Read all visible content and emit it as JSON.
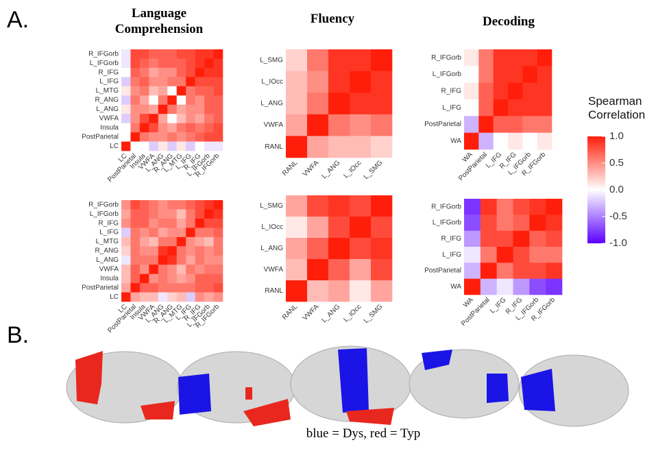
{
  "panel_labels": [
    "A.",
    "B."
  ],
  "chart_data": [
    {
      "type": "heatmap",
      "title": "Language Comprehension",
      "x": [
        "LC",
        "PostParietal",
        "Insula",
        "VWFA",
        "L_ANG",
        "R_ANG",
        "L_MTG",
        "L_IFG",
        "R_IFG",
        "L_IFGorb",
        "R_IFGorb"
      ],
      "y": [
        "R_IFGorb",
        "L_IFGorb",
        "R_IFG",
        "L_IFG",
        "L_MTG",
        "R_ANG",
        "L_ANG",
        "VWFA",
        "Insula",
        "PostParietal",
        "LC"
      ],
      "values": [
        [
          -0.1,
          0.8,
          0.8,
          0.7,
          0.7,
          0.7,
          0.8,
          0.8,
          0.9,
          0.9,
          1
        ],
        [
          -0.1,
          0.8,
          0.7,
          0.6,
          0.7,
          0.7,
          0.7,
          0.8,
          0.9,
          1,
          0.9
        ],
        [
          0,
          0.7,
          0.6,
          0.4,
          0.5,
          0.5,
          0.7,
          0.8,
          1,
          0.9,
          0.9
        ],
        [
          -0.2,
          0.6,
          0.7,
          0.5,
          0.5,
          0.6,
          0.6,
          1,
          0.8,
          0.8,
          0.8
        ],
        [
          0.1,
          0.5,
          0.6,
          0.3,
          0.4,
          0,
          1,
          0.6,
          0.7,
          0.7,
          0.8
        ],
        [
          -0.2,
          0.6,
          0.4,
          0,
          0.6,
          1,
          0,
          0.6,
          0.5,
          0.7,
          0.7
        ],
        [
          0.1,
          0.5,
          0.5,
          0.4,
          1,
          0.6,
          0.4,
          0.5,
          0.5,
          0.7,
          0.7
        ],
        [
          -0.2,
          0.5,
          0.8,
          1,
          0.4,
          0,
          0.3,
          0.5,
          0.4,
          0.6,
          0.7
        ],
        [
          0,
          0.6,
          1,
          0.8,
          0.5,
          0.4,
          0.6,
          0.7,
          0.6,
          0.7,
          0.8
        ],
        [
          0,
          1,
          0.6,
          0.5,
          0.5,
          0.6,
          0.5,
          0.6,
          0.7,
          0.8,
          0.8
        ],
        [
          1,
          0,
          0,
          -0.2,
          0.1,
          -0.2,
          0.1,
          -0.2,
          0,
          -0.1,
          -0.1
        ]
      ]
    },
    {
      "type": "heatmap",
      "title": "Fluency",
      "x": [
        "RANL",
        "VWFA",
        "L_ANG",
        "L_IOcc",
        "L_SMG"
      ],
      "y": [
        "L_SMG",
        "L_IOcc",
        "L_ANG",
        "VWFA",
        "RANL"
      ],
      "values": [
        [
          0.2,
          0.6,
          0.9,
          0.9,
          1
        ],
        [
          0.3,
          0.5,
          0.9,
          1,
          0.9
        ],
        [
          0.3,
          0.6,
          1,
          0.9,
          0.9
        ],
        [
          0.4,
          1,
          0.6,
          0.5,
          0.6
        ],
        [
          1,
          0.4,
          0.3,
          0.3,
          0.2
        ]
      ]
    },
    {
      "type": "heatmap",
      "title": "Decoding",
      "x": [
        "WA",
        "PostParietal",
        "L_IFG",
        "R_IFG",
        "L_IFGorb",
        "R_IFGorb"
      ],
      "y": [
        "R_IFGorb",
        "L_IFGorb",
        "R_IFG",
        "L_IFG",
        "PostParietal",
        "WA"
      ],
      "values": [
        [
          0.1,
          0.6,
          0.9,
          0.9,
          0.9,
          1
        ],
        [
          0,
          0.6,
          0.9,
          0.9,
          1,
          0.9
        ],
        [
          0.1,
          0.7,
          0.9,
          1,
          0.9,
          0.9
        ],
        [
          0,
          0.7,
          1,
          0.9,
          0.9,
          0.9
        ],
        [
          -0.3,
          1,
          0.7,
          0.7,
          0.6,
          0.6
        ],
        [
          1,
          -0.3,
          0,
          0.1,
          0,
          0.1
        ]
      ]
    },
    {
      "type": "heatmap",
      "x": [
        "LC",
        "PostParietal",
        "Insula",
        "VWFA",
        "L_ANG",
        "R_ANG",
        "L_MTG",
        "L_IFG",
        "R_IFG",
        "L_IFGorb",
        "R_IFGorb"
      ],
      "y": [
        "R_IFGorb",
        "L_IFGorb",
        "R_IFG",
        "L_IFG",
        "L_MTG",
        "R_ANG",
        "L_ANG",
        "VWFA",
        "Insula",
        "PostParietal",
        "LC"
      ],
      "values": [
        [
          0.5,
          0.8,
          0.7,
          0.6,
          0.5,
          0.6,
          0.6,
          0.7,
          0.8,
          0.9,
          1
        ],
        [
          0.4,
          0.7,
          0.7,
          0.6,
          0.5,
          0.5,
          0.3,
          0.6,
          0.8,
          1,
          0.9
        ],
        [
          0.5,
          0.7,
          0.7,
          0.5,
          0.6,
          0.6,
          0.4,
          0.6,
          1,
          0.8,
          0.8
        ],
        [
          -0.2,
          0.6,
          0.5,
          0.6,
          0.4,
          0.5,
          0.5,
          1,
          0.6,
          0.6,
          0.7
        ],
        [
          0.3,
          0.6,
          0.4,
          0.3,
          0.6,
          0.6,
          1,
          0.5,
          0.4,
          0.3,
          0.6
        ],
        [
          0.2,
          0.6,
          0.5,
          0.5,
          0.9,
          1,
          0.6,
          0.5,
          0.6,
          0.5,
          0.6
        ],
        [
          -0.1,
          0.6,
          0.6,
          0.6,
          1,
          0.9,
          0.6,
          0.4,
          0.6,
          0.5,
          0.5
        ],
        [
          0.3,
          0.7,
          0.5,
          1,
          0.6,
          0.5,
          0.3,
          0.6,
          0.5,
          0.6,
          0.6
        ],
        [
          0.3,
          0.7,
          1,
          0.5,
          0.6,
          0.5,
          0.4,
          0.5,
          0.7,
          0.7,
          0.7
        ],
        [
          0.4,
          1,
          0.7,
          0.7,
          0.6,
          0.6,
          0.6,
          0.6,
          0.7,
          0.7,
          0.8
        ],
        [
          1,
          0.4,
          0.3,
          0.3,
          -0.1,
          0.2,
          0.3,
          -0.2,
          0.5,
          0.4,
          0.5
        ]
      ]
    },
    {
      "type": "heatmap",
      "x": [
        "RANL",
        "VWFA",
        "L_ANG",
        "L_IOcc",
        "L_SMG"
      ],
      "y": [
        "L_SMG",
        "L_IOcc",
        "L_ANG",
        "VWFA",
        "RANL"
      ],
      "values": [
        [
          0.4,
          0.8,
          0.9,
          0.8,
          1
        ],
        [
          0.1,
          0.4,
          0.8,
          1,
          0.8
        ],
        [
          0.4,
          0.7,
          1,
          0.8,
          0.9
        ],
        [
          0.3,
          1,
          0.7,
          0.4,
          0.8
        ],
        [
          1,
          0.3,
          0.4,
          0.1,
          0.4
        ]
      ]
    },
    {
      "type": "heatmap",
      "x": [
        "WA",
        "PostParietal",
        "L_IFG",
        "R_IFG",
        "L_IFGorb",
        "R_IFGorb"
      ],
      "y": [
        "R_IFGorb",
        "L_IFGorb",
        "R_IFG",
        "L_IFG",
        "PostParietal",
        "WA"
      ],
      "values": [
        [
          -0.8,
          0.9,
          0.6,
          0.8,
          0.9,
          1
        ],
        [
          -0.7,
          0.8,
          0.6,
          0.7,
          1,
          0.9
        ],
        [
          -0.4,
          0.8,
          0.8,
          1,
          0.7,
          0.8
        ],
        [
          -0.1,
          0.6,
          1,
          0.8,
          0.6,
          0.6
        ],
        [
          -0.3,
          1,
          0.6,
          0.8,
          0.8,
          0.9
        ],
        [
          1,
          -0.3,
          -0.1,
          -0.4,
          -0.7,
          -0.8
        ]
      ]
    }
  ],
  "colorbar": {
    "title": "Spearman Correlation",
    "lim": [
      -1,
      1
    ],
    "colors": [
      "#5a00ff",
      "#ffffff",
      "#ff1e0a"
    ],
    "ticks": [
      {
        "value": 1,
        "label": "1.0"
      },
      0.5,
      {
        "value": 0,
        "label": "0.0"
      },
      -0.5,
      {
        "value": -1,
        "label": "-1.0"
      }
    ]
  },
  "caption": "blue = Dys, red = Typ"
}
